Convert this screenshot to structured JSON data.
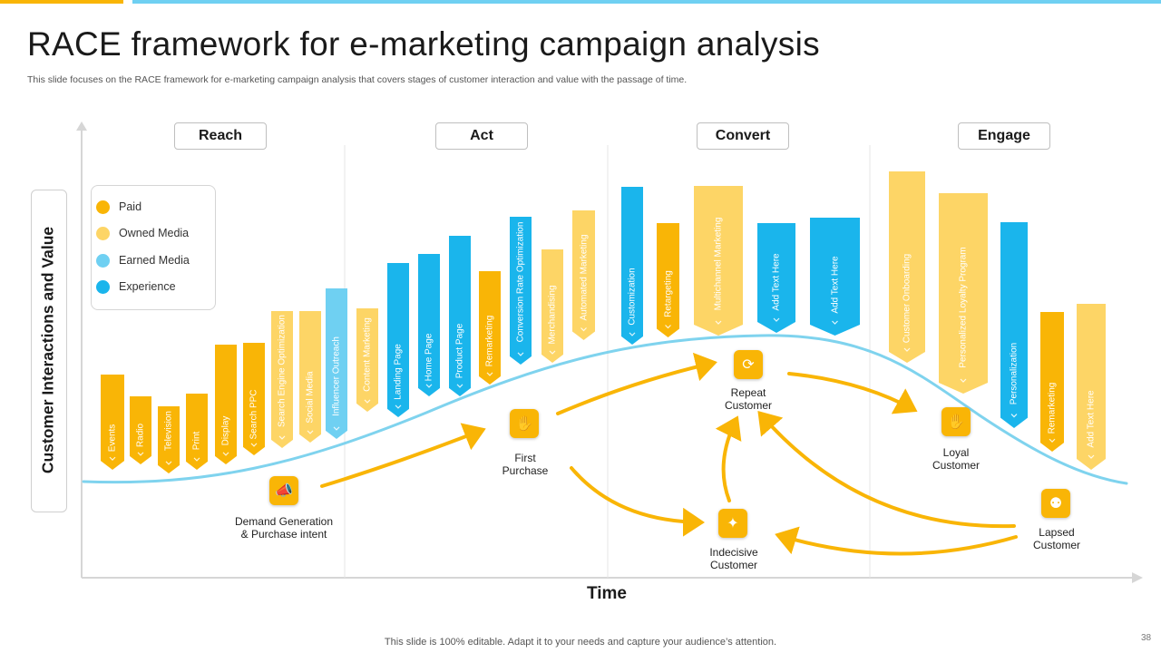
{
  "slide": {
    "title": "RACE framework for e-marketing campaign analysis",
    "subtitle": "This slide focuses on the RACE framework for e-marketing campaign analysis that covers stages of customer interaction and value with the passage of time.",
    "footer": "This slide is 100% editable. Adapt it to your needs and capture your audience’s attention.",
    "page_number": "38"
  },
  "colors": {
    "paid": "#F9B506",
    "owned": "#FDD566",
    "earned": "#6FD0F2",
    "experience": "#1AB5EC",
    "curve": "#7FD3EE",
    "accent_bar": "#F9B506",
    "accent_line": "#6FD0F2"
  },
  "axes": {
    "y_label": "Customer Interactions and Value",
    "x_label": "Time"
  },
  "stages": [
    {
      "label": "Reach"
    },
    {
      "label": "Act"
    },
    {
      "label": "Convert"
    },
    {
      "label": "Engage"
    }
  ],
  "legend": [
    {
      "label": "Paid",
      "type": "paid"
    },
    {
      "label": "Owned Media",
      "type": "owned"
    },
    {
      "label": "Earned Media",
      "type": "earned"
    },
    {
      "label": "Experience",
      "type": "experience"
    }
  ],
  "bars": [
    {
      "label": "Events",
      "type": "paid"
    },
    {
      "label": "Radio",
      "type": "paid"
    },
    {
      "label": "Television",
      "type": "paid"
    },
    {
      "label": "Print",
      "type": "paid"
    },
    {
      "label": "Display",
      "type": "paid"
    },
    {
      "label": "Search PPC",
      "type": "paid"
    },
    {
      "label": "Search Engine Optimization",
      "type": "owned"
    },
    {
      "label": "Social Media",
      "type": "owned"
    },
    {
      "label": "Influencer Outreach",
      "type": "earned"
    },
    {
      "label": "Content Marketing",
      "type": "owned"
    },
    {
      "label": "Landing Page",
      "type": "experience"
    },
    {
      "label": "Home Page",
      "type": "experience"
    },
    {
      "label": "Product Page",
      "type": "experience"
    },
    {
      "label": "Remarketing",
      "type": "paid"
    },
    {
      "label": "Conversion Rate Optimization",
      "type": "experience"
    },
    {
      "label": "Merchandising",
      "type": "owned"
    },
    {
      "label": "Automated Marketing",
      "type": "owned"
    },
    {
      "label": "Customization",
      "type": "experience"
    },
    {
      "label": "Retargeting",
      "type": "paid"
    },
    {
      "label": "Multichannel Marketing",
      "type": "owned"
    },
    {
      "label": "Add Text Here",
      "type": "experience"
    },
    {
      "label": "Add Text Here",
      "type": "experience"
    },
    {
      "label": "Customer Onboarding",
      "type": "owned"
    },
    {
      "label": "Personalized Loyalty Program",
      "type": "owned"
    },
    {
      "label": "Personalization",
      "type": "experience"
    },
    {
      "label": "Remarketing",
      "type": "paid"
    },
    {
      "label": "Add Text Here",
      "type": "owned"
    }
  ],
  "nodes": [
    {
      "label": "Demand Generation\n& Purchase intent",
      "icon": "megaphone-icon",
      "glyph": "📣"
    },
    {
      "label": "First\nPurchase",
      "icon": "hand-money-icon",
      "glyph": "✋"
    },
    {
      "label": "Repeat\nCustomer",
      "icon": "repeat-icon",
      "glyph": "⟳"
    },
    {
      "label": "Indecisive\nCustomer",
      "icon": "person-icon",
      "glyph": "✦"
    },
    {
      "label": "Loyal\nCustomer",
      "icon": "loyal-hand-icon",
      "glyph": "✋"
    },
    {
      "label": "Lapsed\nCustomer",
      "icon": "group-icon",
      "glyph": "⚉"
    }
  ]
}
